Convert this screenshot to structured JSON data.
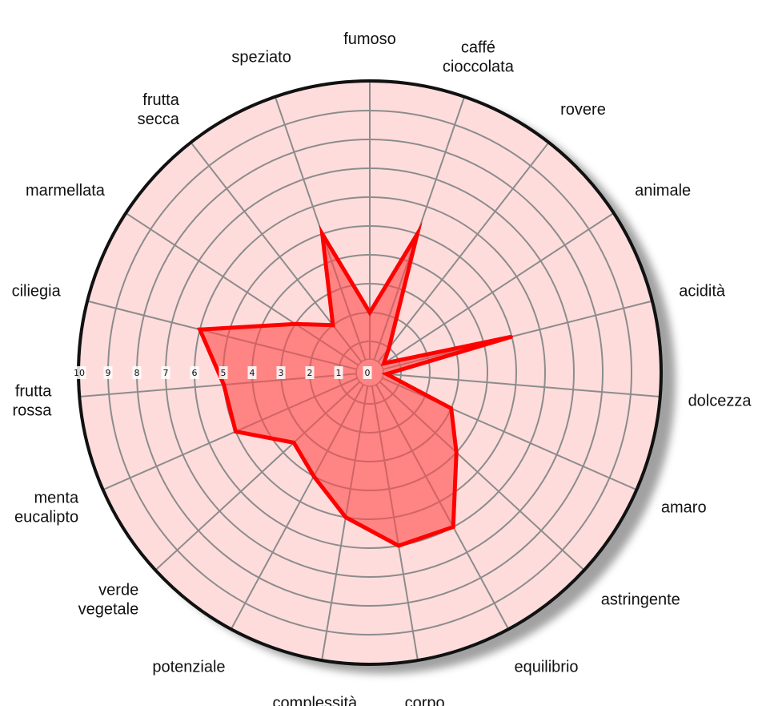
{
  "chart_data": {
    "type": "radar",
    "title": "",
    "rmin": 0,
    "rmax": 10,
    "ticks": [
      "0",
      "1",
      "2",
      "3",
      "4",
      "5",
      "6",
      "7",
      "8",
      "9",
      "10"
    ],
    "grid": true,
    "axes": [
      {
        "name": "fumoso",
        "lines": [
          "fumoso"
        ]
      },
      {
        "name": "caffé cioccolata",
        "lines": [
          "caffé",
          "cioccolata"
        ]
      },
      {
        "name": "rovere",
        "lines": [
          "rovere"
        ]
      },
      {
        "name": "animale",
        "lines": [
          "animale"
        ]
      },
      {
        "name": "acidità",
        "lines": [
          "acidità"
        ]
      },
      {
        "name": "dolcezza",
        "lines": [
          "dolcezza"
        ]
      },
      {
        "name": "amaro",
        "lines": [
          "amaro"
        ]
      },
      {
        "name": "astringente",
        "lines": [
          "astringente"
        ]
      },
      {
        "name": "equilibrio",
        "lines": [
          "equilibrio"
        ]
      },
      {
        "name": "corpo",
        "lines": [
          "corpo"
        ]
      },
      {
        "name": "complessità",
        "lines": [
          "complessità"
        ]
      },
      {
        "name": "potenziale",
        "lines": [
          "potenziale"
        ]
      },
      {
        "name": "verde vegetale",
        "lines": [
          "verde",
          "vegetale"
        ]
      },
      {
        "name": "menta eucalipto",
        "lines": [
          "menta",
          "eucalipto"
        ]
      },
      {
        "name": "frutta rossa",
        "lines": [
          "frutta",
          "rossa"
        ]
      },
      {
        "name": "ciliegia",
        "lines": [
          "ciliegia"
        ]
      },
      {
        "name": "marmellata",
        "lines": [
          "marmellata"
        ]
      },
      {
        "name": "frutta secca",
        "lines": [
          "frutta",
          "secca"
        ]
      },
      {
        "name": "speziato",
        "lines": [
          "speziato"
        ]
      }
    ],
    "series": [
      {
        "values": [
          2,
          5,
          1,
          0.5,
          5,
          0.5,
          3,
          4,
          6,
          6,
          5,
          4,
          3.5,
          5,
          5,
          6,
          3,
          2,
          5
        ]
      }
    ],
    "colors": {
      "background": "#ffdcdc",
      "grid": "#8c8c8c",
      "outer_ring": "#111111",
      "series_fill": "#ff4a4a",
      "series_stroke": "#ff0000"
    }
  }
}
